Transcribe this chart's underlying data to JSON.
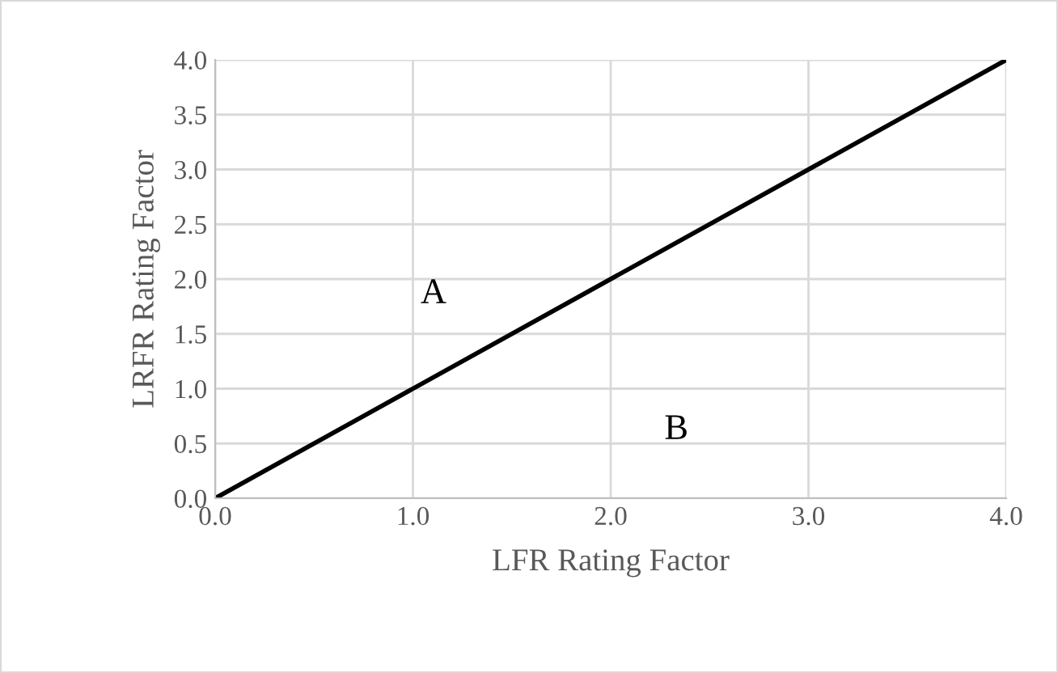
{
  "chart_data": {
    "type": "line",
    "xlabel": "LFR Rating Factor",
    "ylabel": "LRFR Rating Factor",
    "x": [
      0,
      4
    ],
    "series": [
      {
        "color": "#000000",
        "values": [
          0,
          4
        ]
      }
    ],
    "xlim": [
      0,
      4
    ],
    "xticks": [
      {
        "value": 0,
        "label": "0.0"
      },
      {
        "value": 1,
        "label": "1.0"
      },
      {
        "value": 2,
        "label": "2.0"
      },
      {
        "value": 3,
        "label": "3.0"
      },
      {
        "value": 4,
        "label": "4.0"
      }
    ],
    "ylim": [
      0,
      4
    ],
    "yticks": [
      {
        "value": 0,
        "label": "0.0"
      },
      {
        "value": 0.5,
        "label": "0.5"
      },
      {
        "value": 1,
        "label": "1.0"
      },
      {
        "value": 1.5,
        "label": "1.5"
      },
      {
        "value": 2,
        "label": "2.0"
      },
      {
        "value": 2.5,
        "label": "2.5"
      },
      {
        "value": 3,
        "label": "3.0"
      },
      {
        "value": 3.5,
        "label": "3.5"
      },
      {
        "value": 4,
        "label": "4.0"
      }
    ],
    "annotations": [
      "A",
      "B"
    ],
    "grid": true,
    "legend": false,
    "marker": "none",
    "line_style": "solid"
  }
}
